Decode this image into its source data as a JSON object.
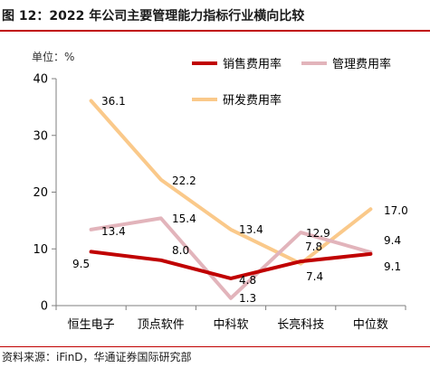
{
  "figure": {
    "title": "图 12：2022 年公司主要管理能力指标行业横向比较",
    "source": "资料来源：iFinD，华通证券国际研究部"
  },
  "chart_data": {
    "type": "line",
    "unit_label": "单位：%",
    "categories": [
      "恒生电子",
      "顶点软件",
      "中科软",
      "长亮科技",
      "中位数"
    ],
    "ylim": [
      0,
      40
    ],
    "yticks": [
      0,
      10,
      20,
      30,
      40
    ],
    "grid": false,
    "legend_position": "top-right",
    "series": [
      {
        "name": "销售费用率",
        "color": "#c00000",
        "values": [
          9.5,
          8.0,
          4.8,
          7.8,
          9.1
        ]
      },
      {
        "name": "管理费用率",
        "color": "#e2b4bb",
        "values": [
          13.4,
          15.4,
          1.3,
          12.9,
          9.4
        ]
      },
      {
        "name": "研发费用率",
        "color": "#fac98a",
        "values": [
          36.1,
          22.2,
          13.4,
          7.4,
          17.0
        ]
      }
    ],
    "data_labels": [
      [
        "9.5",
        "8.0",
        "4.8",
        "7.8",
        "9.1"
      ],
      [
        "13.4",
        "15.4",
        "1.3",
        "12.9",
        "9.4"
      ],
      [
        "36.1",
        "22.2",
        "13.4",
        "7.4",
        "17.0"
      ]
    ]
  }
}
